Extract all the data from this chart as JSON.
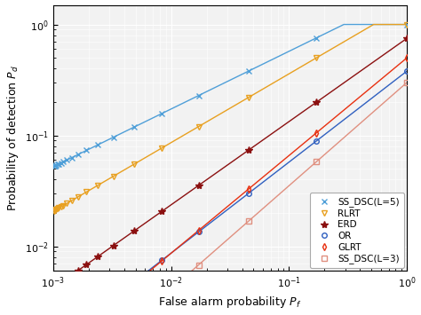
{
  "title": "",
  "xlabel": "False alarm probability $P_f$",
  "ylabel": "Probability of detection $P_d$",
  "xlim": [
    0.001,
    1.0
  ],
  "ylim": [
    0.006,
    1.5
  ],
  "background_color": "#FFFFFF",
  "axes_facecolor": "#F2F2F2",
  "grid_color": "#FFFFFF",
  "curves": [
    {
      "label": "SS_DSC(L=5)",
      "color": "#4F9FD8",
      "marker": "x",
      "markersize": 5,
      "linewidth": 1.0,
      "a": 1.9,
      "b": 0.52
    },
    {
      "label": "RLRT",
      "color": "#E8A020",
      "marker": "v",
      "markersize": 5,
      "linewidth": 1.0,
      "a": 1.5,
      "b": 0.62
    },
    {
      "label": "ERD",
      "color": "#8B1010",
      "marker": "*",
      "markersize": 6,
      "linewidth": 1.0,
      "a": 0.75,
      "b": 0.75
    },
    {
      "label": "OR",
      "color": "#3060C0",
      "marker": "o",
      "markersize": 4,
      "linewidth": 1.0,
      "a": 0.38,
      "b": 0.82
    },
    {
      "label": "GLRT",
      "color": "#E83010",
      "marker": "d",
      "markersize": 4,
      "linewidth": 1.0,
      "a": 0.5,
      "b": 0.88
    },
    {
      "label": "SS_DSC(L=3)",
      "color": "#E09080",
      "marker": "s",
      "markersize": 4,
      "linewidth": 1.0,
      "a": 0.3,
      "b": 0.93
    }
  ],
  "n_markers": 22,
  "legend_fontsize": 7.5
}
